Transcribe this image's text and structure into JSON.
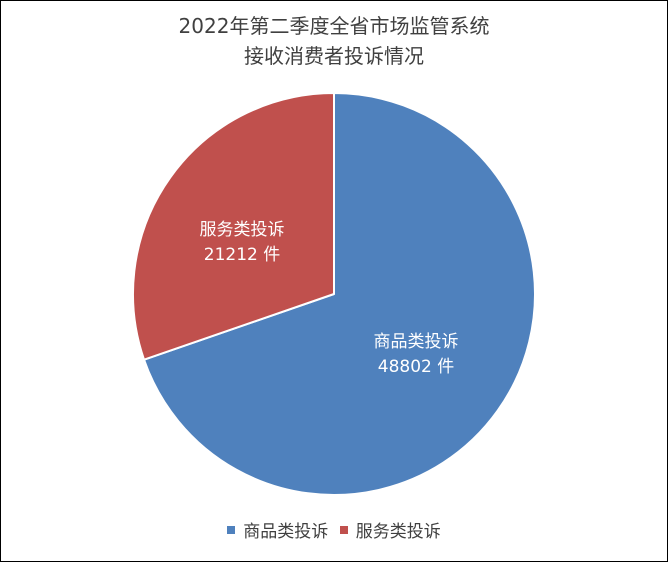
{
  "chart_data": {
    "type": "pie",
    "title_lines": [
      "2022年第二季度全省市场监管系统",
      "接收消费者投诉情况"
    ],
    "slices": [
      {
        "name": "商品类投诉",
        "value": 48802,
        "unit": "件",
        "color": "#4F81BD"
      },
      {
        "name": "服务类投诉",
        "value": 21212,
        "unit": "件",
        "color": "#C0504D"
      }
    ],
    "start_angle_deg": 0,
    "direction": "clockwise",
    "legend_position": "bottom"
  },
  "legend": {
    "items": [
      {
        "label": "商品类投诉",
        "color": "#4F81BD"
      },
      {
        "label": "服务类投诉",
        "color": "#C0504D"
      }
    ]
  },
  "labels": {
    "slice0_name": "商品类投诉",
    "slice0_value": "48802 件",
    "slice1_name": "服务类投诉",
    "slice1_value": "21212 件"
  }
}
